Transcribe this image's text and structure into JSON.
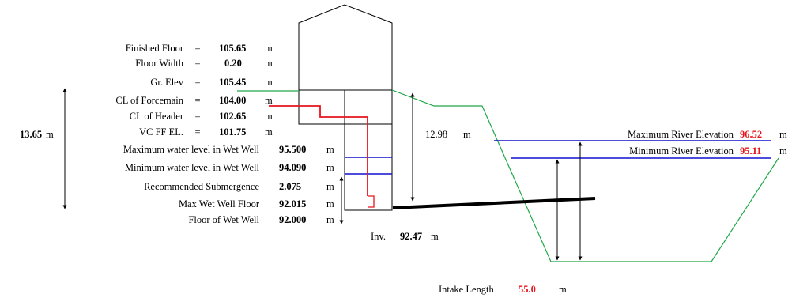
{
  "params": [
    {
      "label": "Finished Floor",
      "eq": "=",
      "value": "105.65",
      "unit": "m"
    },
    {
      "label": "Floor Width",
      "eq": "=",
      "value": "0.20",
      "unit": "m"
    },
    {
      "label": "Gr. Elev",
      "eq": "=",
      "value": "105.45",
      "unit": "m"
    },
    {
      "label": "CL of Forcemain",
      "eq": "=",
      "value": "104.00",
      "unit": "m"
    },
    {
      "label": "CL of Header",
      "eq": "=",
      "value": "102.65",
      "unit": "m"
    },
    {
      "label": "VC FF EL.",
      "eq": "=",
      "value": "101.75",
      "unit": "m"
    },
    {
      "label": "Maximum water level in Wet Well",
      "eq": "",
      "value": "95.500",
      "unit": "m"
    },
    {
      "label": "Minimum water level in Wet Well",
      "eq": "",
      "value": "94.090",
      "unit": "m"
    },
    {
      "label": "Recommended Submergence",
      "eq": "",
      "value": "2.075",
      "unit": "m"
    },
    {
      "label": "Max Wet Well Floor",
      "eq": "",
      "value": "92.015",
      "unit": "m"
    },
    {
      "label": "Floor of Wet Well",
      "eq": "",
      "value": "92.000",
      "unit": "m"
    }
  ],
  "total_depth": {
    "value": "13.65",
    "unit": "m"
  },
  "intake_height": {
    "value": "12.98",
    "unit": "m"
  },
  "invert": {
    "label": "Inv.",
    "value": "92.47",
    "unit": "m"
  },
  "river": {
    "max": {
      "label": "Maximum River Elevation",
      "value": "96.52",
      "unit": "m"
    },
    "min": {
      "label": "Minimum River Elevation",
      "value": "95.11",
      "unit": "m"
    }
  },
  "intake_length": {
    "label": "Intake Length",
    "value": "55.0",
    "unit": "m"
  },
  "colors": {
    "ground": "#21a84a",
    "water": "#1010d0",
    "pipe": "#e8141b",
    "intake": "#000000",
    "highlight": "#e8141b"
  }
}
